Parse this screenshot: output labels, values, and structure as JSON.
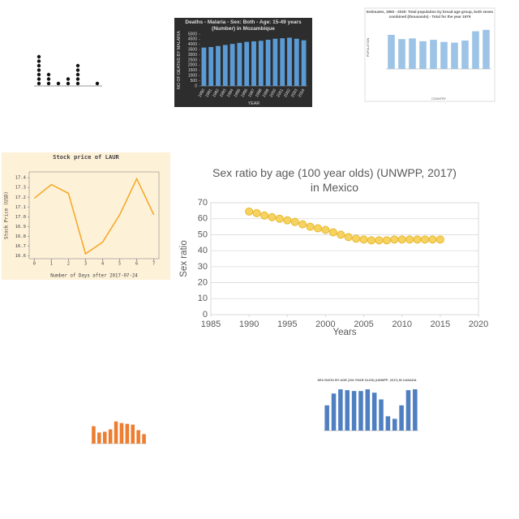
{
  "chart_data": [
    {
      "type": "dot",
      "values": [
        7,
        3,
        1,
        2,
        5,
        0,
        1
      ],
      "color": "#111111"
    },
    {
      "type": "bar",
      "title": "Deaths - Malaria - Sex: Both - Age: 15-49 years (Number) in Mozambique",
      "ylabel": "NO OF DEATHS BY MALARIA",
      "xlabel": "YEAR",
      "categories": [
        "1990",
        "1991",
        "1992",
        "1993",
        "1994",
        "1995",
        "1996",
        "1997",
        "1998",
        "1999",
        "2000",
        "2001",
        "2002",
        "2003",
        "2004"
      ],
      "values": [
        3700,
        3750,
        3850,
        3950,
        4050,
        4150,
        4250,
        4300,
        4350,
        4450,
        4550,
        4600,
        4650,
        4550,
        4400
      ],
      "color": "#5b9bd5",
      "ylim": [
        0,
        5000
      ],
      "yticks": [
        0,
        500,
        1000,
        1500,
        2000,
        2500,
        3000,
        3500,
        4000,
        4500,
        5000
      ]
    },
    {
      "type": "bar",
      "title": "Estimates, 1950 - 2020: Total population by broad age group, both sexes combined (thousands) - Total for the year 1979",
      "ylabel": "POPULATION",
      "xlabel": "COUNTRY",
      "values": [
        2400,
        2100,
        2150,
        1950,
        2050,
        1900,
        1850,
        2000,
        2650,
        2750
      ],
      "color": "#9dc3e6"
    },
    {
      "type": "line",
      "title": "Stock price of LAUR",
      "xlabel": "Number of Days after 2017-07-24",
      "ylabel": "Stock Price (USD)",
      "x": [
        0,
        1,
        2,
        3,
        4,
        5,
        6,
        7
      ],
      "values": [
        17.19,
        17.33,
        17.24,
        16.62,
        16.74,
        17.02,
        17.39,
        17.02
      ],
      "color": "#f5a623",
      "xlim": [
        -0.3,
        7.3
      ],
      "xticks": [
        0,
        1,
        2,
        3,
        4,
        5,
        6,
        7
      ],
      "ylim": [
        16.57,
        17.46
      ],
      "yticks": [
        16.6,
        16.7,
        16.8,
        16.9,
        {
          "value": 17,
          "label": "17.0"
        },
        17.1,
        17.2,
        17.3,
        17.4
      ]
    },
    {
      "type": "scatter",
      "title": "Sex ratio by age (100 year olds) (UNWPP, 2017) in Mexico",
      "xlabel": "Years",
      "ylabel": "Sex ratio",
      "x": [
        1990,
        1991,
        1992,
        1993,
        1994,
        1995,
        1996,
        1997,
        1998,
        1999,
        2000,
        2001,
        2002,
        2003,
        2004,
        2005,
        2006,
        2007,
        2008,
        2009,
        2010,
        2011,
        2012,
        2013,
        2014,
        2015
      ],
      "values": [
        64.5,
        63.5,
        62,
        61,
        60,
        59,
        58,
        56.5,
        55,
        54,
        53,
        51.5,
        50,
        48.5,
        47.5,
        47,
        46.5,
        46.5,
        46.5,
        47,
        47,
        47,
        47,
        47,
        47,
        47
      ],
      "color": "#f4cb45",
      "xlim": [
        1985,
        2020
      ],
      "xticks": [
        1985,
        1990,
        1995,
        2000,
        2005,
        2010,
        2015,
        2020
      ],
      "ylim": [
        0,
        70
      ],
      "yticks": [
        0,
        10,
        20,
        30,
        40,
        50,
        60,
        70
      ],
      "grid": true
    },
    {
      "type": "bar",
      "title": "SEX RATIO BY AGE (100 YEAR OLDS) (UNWPP_2017) IN CANADA",
      "values": [
        30,
        44,
        49,
        48,
        47,
        47,
        49,
        45,
        37,
        17,
        14,
        30,
        48,
        49
      ],
      "color": "#4f7fc0"
    },
    {
      "type": "bar",
      "values": [
        22,
        14,
        15,
        18,
        28,
        26,
        25,
        24,
        17,
        12
      ],
      "color": "#ed7d31"
    }
  ]
}
